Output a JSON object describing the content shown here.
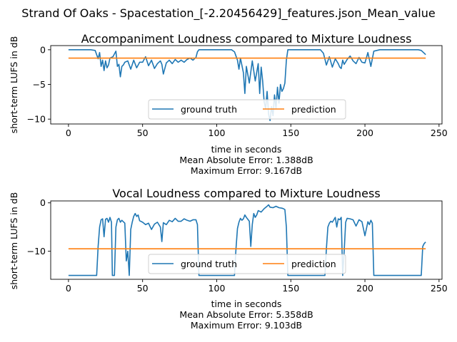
{
  "figure": {
    "suptitle": "Strand Of Oaks - Spacestation_[-2.20456429]_features.json_Mean_value"
  },
  "colors": {
    "ground_truth": "#1f77b4",
    "prediction": "#ff7f0e"
  },
  "chart_data": [
    {
      "type": "line",
      "title": "Accompaniment Loudness compared to Mixture Loudness",
      "xlabel": "time in seconds",
      "ylabel": "short-term LUFS in dB",
      "xlim": [
        -12,
        252
      ],
      "ylim": [
        -10.7,
        0.6
      ],
      "xticks": [
        0,
        50,
        100,
        150,
        200,
        250
      ],
      "yticks": [
        0,
        -5,
        -10
      ],
      "grid": false,
      "legend": "lower-center",
      "notes": [
        "Mean Absolute Error: 1.388dB",
        "Maximum Error: 9.167dB"
      ],
      "series": [
        {
          "name": "ground truth",
          "x": [
            0,
            15,
            18,
            20,
            21,
            22,
            23,
            24,
            25,
            26,
            27,
            28,
            30,
            32,
            33,
            34,
            35,
            36,
            37,
            38,
            40,
            42,
            44,
            46,
            48,
            50,
            52,
            54,
            56,
            58,
            60,
            62,
            63,
            64,
            66,
            68,
            70,
            72,
            74,
            76,
            78,
            80,
            82,
            84,
            86,
            87,
            88,
            90,
            100,
            110,
            112,
            114,
            115,
            116,
            118,
            119,
            120,
            122,
            124,
            126,
            128,
            129,
            130,
            131,
            132,
            133,
            134,
            135,
            136,
            137,
            138,
            139,
            140,
            141,
            142,
            143,
            144,
            145,
            146,
            147,
            148,
            150,
            170,
            172,
            174,
            176,
            178,
            180,
            182,
            183,
            184,
            185,
            186,
            188,
            190,
            192,
            194,
            196,
            198,
            200,
            202,
            204,
            206,
            210,
            220,
            230,
            236,
            238,
            240,
            241
          ],
          "values": [
            0,
            0,
            -0.1,
            -1.3,
            -0.4,
            -2.4,
            -1.5,
            -3,
            -1.6,
            -2.6,
            -2.2,
            -1.2,
            -1,
            -0.2,
            -2.4,
            -2.1,
            -3.9,
            -2.4,
            -2.2,
            -1.8,
            -1.6,
            -2.8,
            -1.5,
            -2.6,
            -1.8,
            -1.8,
            -1,
            -2.3,
            -1.5,
            -2.7,
            -2,
            -1.6,
            -2.1,
            -3.5,
            -1.9,
            -1.5,
            -2,
            -1.4,
            -1.8,
            -1.5,
            -1.8,
            -1.4,
            -1.2,
            -1.5,
            -1.1,
            -0.3,
            0,
            0,
            0,
            0,
            -0.3,
            -1.5,
            -2.8,
            -1.2,
            -3.3,
            -6.3,
            -2.4,
            -4.8,
            -1.6,
            -4.5,
            -2,
            -6.3,
            -2.5,
            -4.5,
            -7.5,
            -8.5,
            -6,
            -9.3,
            -10.2,
            -8.2,
            -9.5,
            -6.5,
            -8.5,
            -5.4,
            -7.7,
            -5,
            -6,
            -5.6,
            -4.8,
            -1.5,
            0,
            0,
            0,
            -0.5,
            -2.2,
            -1,
            -2.5,
            -1.3,
            -2,
            -2.5,
            -2.7,
            -1.5,
            -2.1,
            -1.4,
            -0.9,
            -1.6,
            -2,
            -1.1,
            -1.8,
            -1.9,
            -0.4,
            -2.4,
            -0.2,
            0,
            0,
            0,
            0,
            -0.1,
            -0.5,
            -0.7
          ]
        },
        {
          "name": "prediction",
          "x": [
            0,
            241
          ],
          "values": [
            -1.2,
            -1.2
          ]
        }
      ]
    },
    {
      "type": "line",
      "title": "Vocal Loudness compared to Mixture Loudness",
      "xlabel": "time in seconds",
      "ylabel": "short-term LUFS in dB",
      "xlim": [
        -12,
        252
      ],
      "ylim": [
        -15.8,
        0.4
      ],
      "xticks": [
        0,
        50,
        100,
        150,
        200,
        250
      ],
      "yticks": [
        0,
        -10
      ],
      "grid": false,
      "legend": "lower-center",
      "notes": [
        "Mean Absolute Error: 5.358dB",
        "Maximum Error: 9.103dB"
      ],
      "series": [
        {
          "name": "ground truth",
          "x": [
            0,
            19,
            20,
            21,
            22,
            23,
            24,
            25,
            26,
            27,
            28,
            29,
            29.6,
            30,
            31,
            32,
            33,
            34,
            35,
            36,
            38,
            39,
            40,
            41,
            42,
            43,
            44,
            45,
            46,
            47,
            48,
            50,
            52,
            54,
            56,
            58,
            60,
            62,
            63,
            64,
            66,
            68,
            70,
            72,
            74,
            76,
            78,
            80,
            82,
            84,
            86,
            87,
            88,
            100,
            112,
            113,
            114,
            115,
            116,
            117,
            118,
            119,
            120,
            122,
            123,
            124,
            125,
            126,
            127,
            128,
            130,
            132,
            134,
            135,
            136,
            138,
            140,
            142,
            144,
            145,
            146,
            147,
            148,
            173,
            174,
            175,
            176,
            177,
            178,
            179,
            180,
            181,
            182,
            183,
            184,
            185,
            186,
            187,
            188,
            190,
            192,
            194,
            196,
            198,
            200,
            202,
            203,
            204,
            205,
            206,
            230,
            238,
            239,
            240,
            241
          ],
          "values": [
            -15,
            -15,
            -9,
            -5,
            -3.5,
            -3.3,
            -7,
            -3.4,
            -3.2,
            -4,
            -3,
            -4,
            -15,
            -15,
            -15,
            -5,
            -3.5,
            -3.2,
            -4,
            -3.6,
            -4.2,
            -12,
            -10,
            -15,
            -5.5,
            -4,
            -2.8,
            -2.2,
            -2.8,
            -2.5,
            -3.7,
            -4,
            -4.5,
            -4.2,
            -5.5,
            -4.4,
            -4,
            -5,
            -8,
            -4.1,
            -4.5,
            -3.6,
            -3.9,
            -3.2,
            -3.8,
            -3.8,
            -3.3,
            -3.6,
            -3.8,
            -3.5,
            -3.5,
            -4.5,
            -15,
            -15,
            -15,
            -9.5,
            -5.3,
            -4,
            -3.2,
            -3.6,
            -3.3,
            -2.5,
            -3,
            -3.8,
            -9,
            -4.5,
            -2.2,
            -3,
            -2.5,
            -1.6,
            -1.9,
            -1.2,
            -0.7,
            -0.4,
            -0.9,
            -1,
            -0.7,
            -1,
            -1.1,
            -1.2,
            -1.4,
            -5,
            -15,
            -15,
            -9.5,
            -5,
            -4.2,
            -3.8,
            -4,
            -3.5,
            -3,
            -5,
            -3.3,
            -3.5,
            -3,
            -15,
            -10,
            -4,
            -3.2,
            -3.3,
            -3.5,
            -4.8,
            -3.5,
            -3.9,
            -6.8,
            -3.9,
            -4.5,
            -3.6,
            -4.2,
            -15,
            -15,
            -15,
            -9,
            -8.4,
            -8.1
          ]
        },
        {
          "name": "prediction",
          "x": [
            0,
            241
          ],
          "values": [
            -9.5,
            -9.5
          ]
        }
      ]
    }
  ]
}
